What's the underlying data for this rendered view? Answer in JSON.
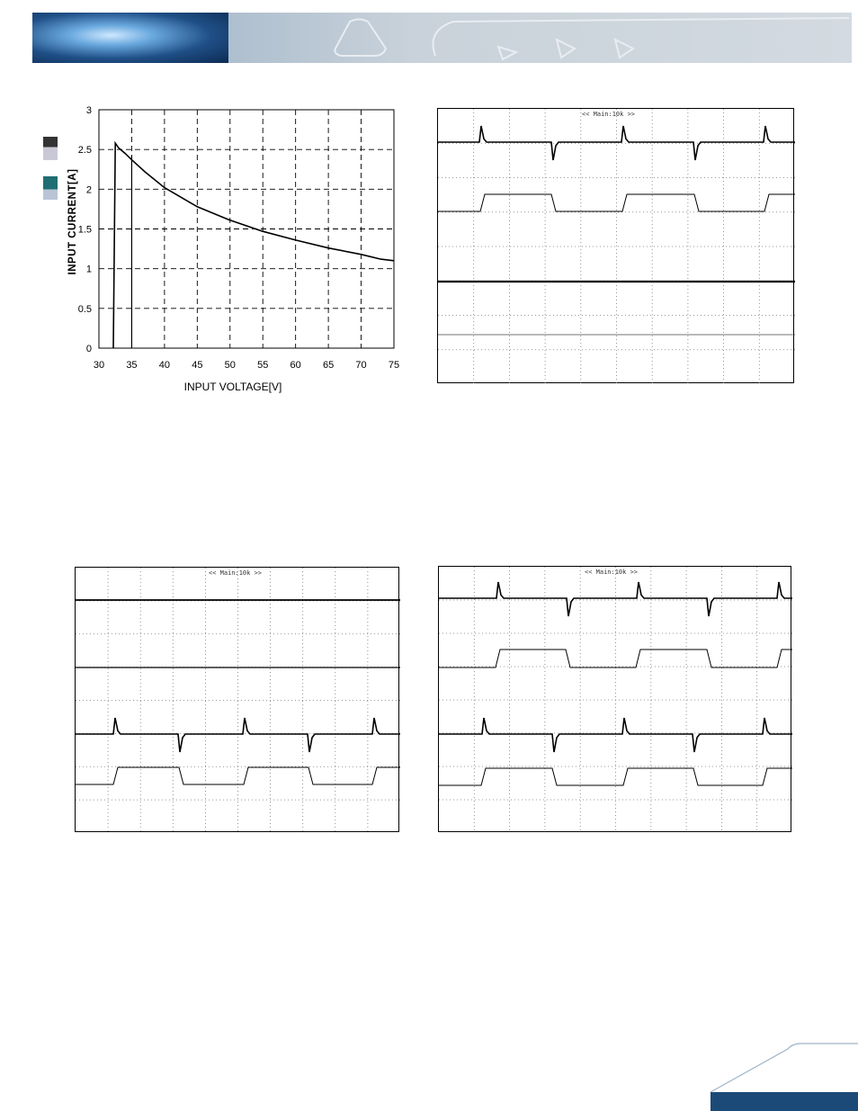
{
  "chart_data": {
    "type": "line",
    "xlabel": "INPUT VOLTAGE[V]",
    "ylabel": "INPUT CURRENT[A]",
    "xlim": [
      30,
      75
    ],
    "ylim": [
      0,
      3
    ],
    "xticks": [
      "30",
      "35",
      "40",
      "45",
      "50",
      "55",
      "60",
      "65",
      "70",
      "75"
    ],
    "yticks": [
      "0",
      "0.5",
      "1",
      "1.5",
      "2",
      "2.5",
      "3"
    ],
    "grid": "dashed",
    "series": [
      {
        "x": [
          32.2,
          32.5,
          33,
          34,
          35,
          37,
          40,
          45,
          50,
          55,
          60,
          65,
          70,
          73,
          75
        ],
        "y": [
          0,
          2.58,
          2.52,
          2.45,
          2.37,
          2.22,
          2.02,
          1.78,
          1.61,
          1.47,
          1.36,
          1.26,
          1.18,
          1.12,
          1.1
        ]
      }
    ],
    "secondary_vline_x": 35
  },
  "scopes": [
    {
      "id": "top-right",
      "title": "<< Main:10k >>"
    },
    {
      "id": "bottom-left",
      "title": "<< Main:10k >>"
    },
    {
      "id": "bottom-right",
      "title": "<< Main:10k >>"
    }
  ],
  "colors": {
    "footer": "#1c4a78",
    "legend_dark": "#333333",
    "legend_teal": "#1f6e73"
  }
}
